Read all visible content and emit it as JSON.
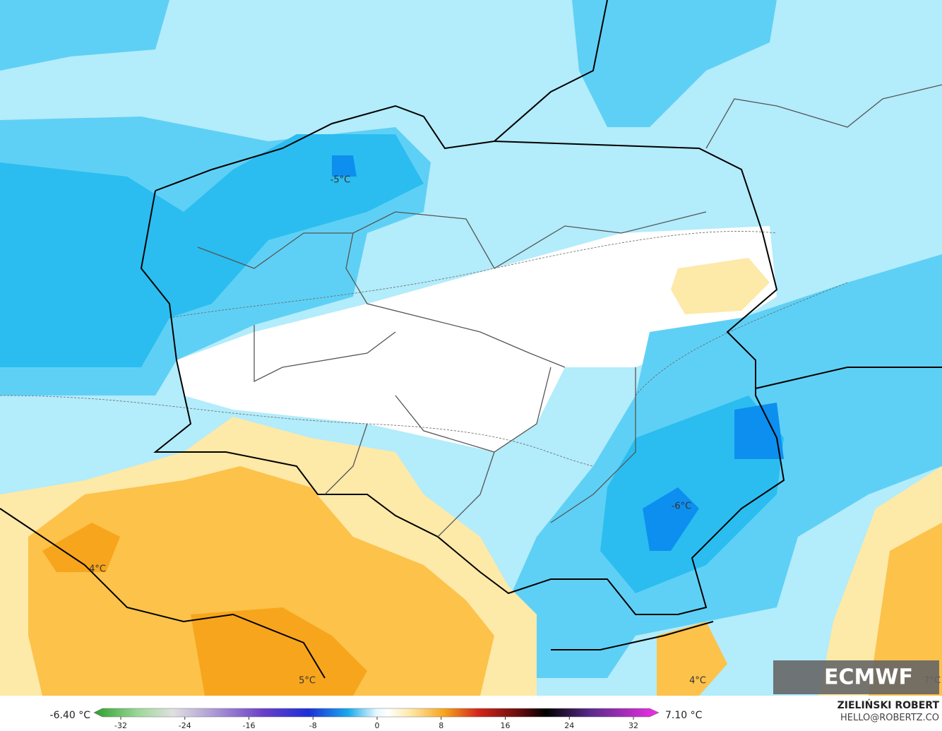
{
  "map": {
    "labels": [
      "-5°C",
      "-6°C",
      "4°C",
      "5°C",
      "4°C",
      "7°C"
    ]
  },
  "logo": "ECMWF",
  "author": "ZIELIŃSKI ROBERT",
  "contact": "HELLO@ROBERTZ.CO",
  "legend": {
    "min_label": "-6.40 °C",
    "max_label": "7.10 °C",
    "ticks": [
      -32,
      -24,
      -16,
      -8,
      0,
      8,
      16,
      24,
      32
    ]
  }
}
